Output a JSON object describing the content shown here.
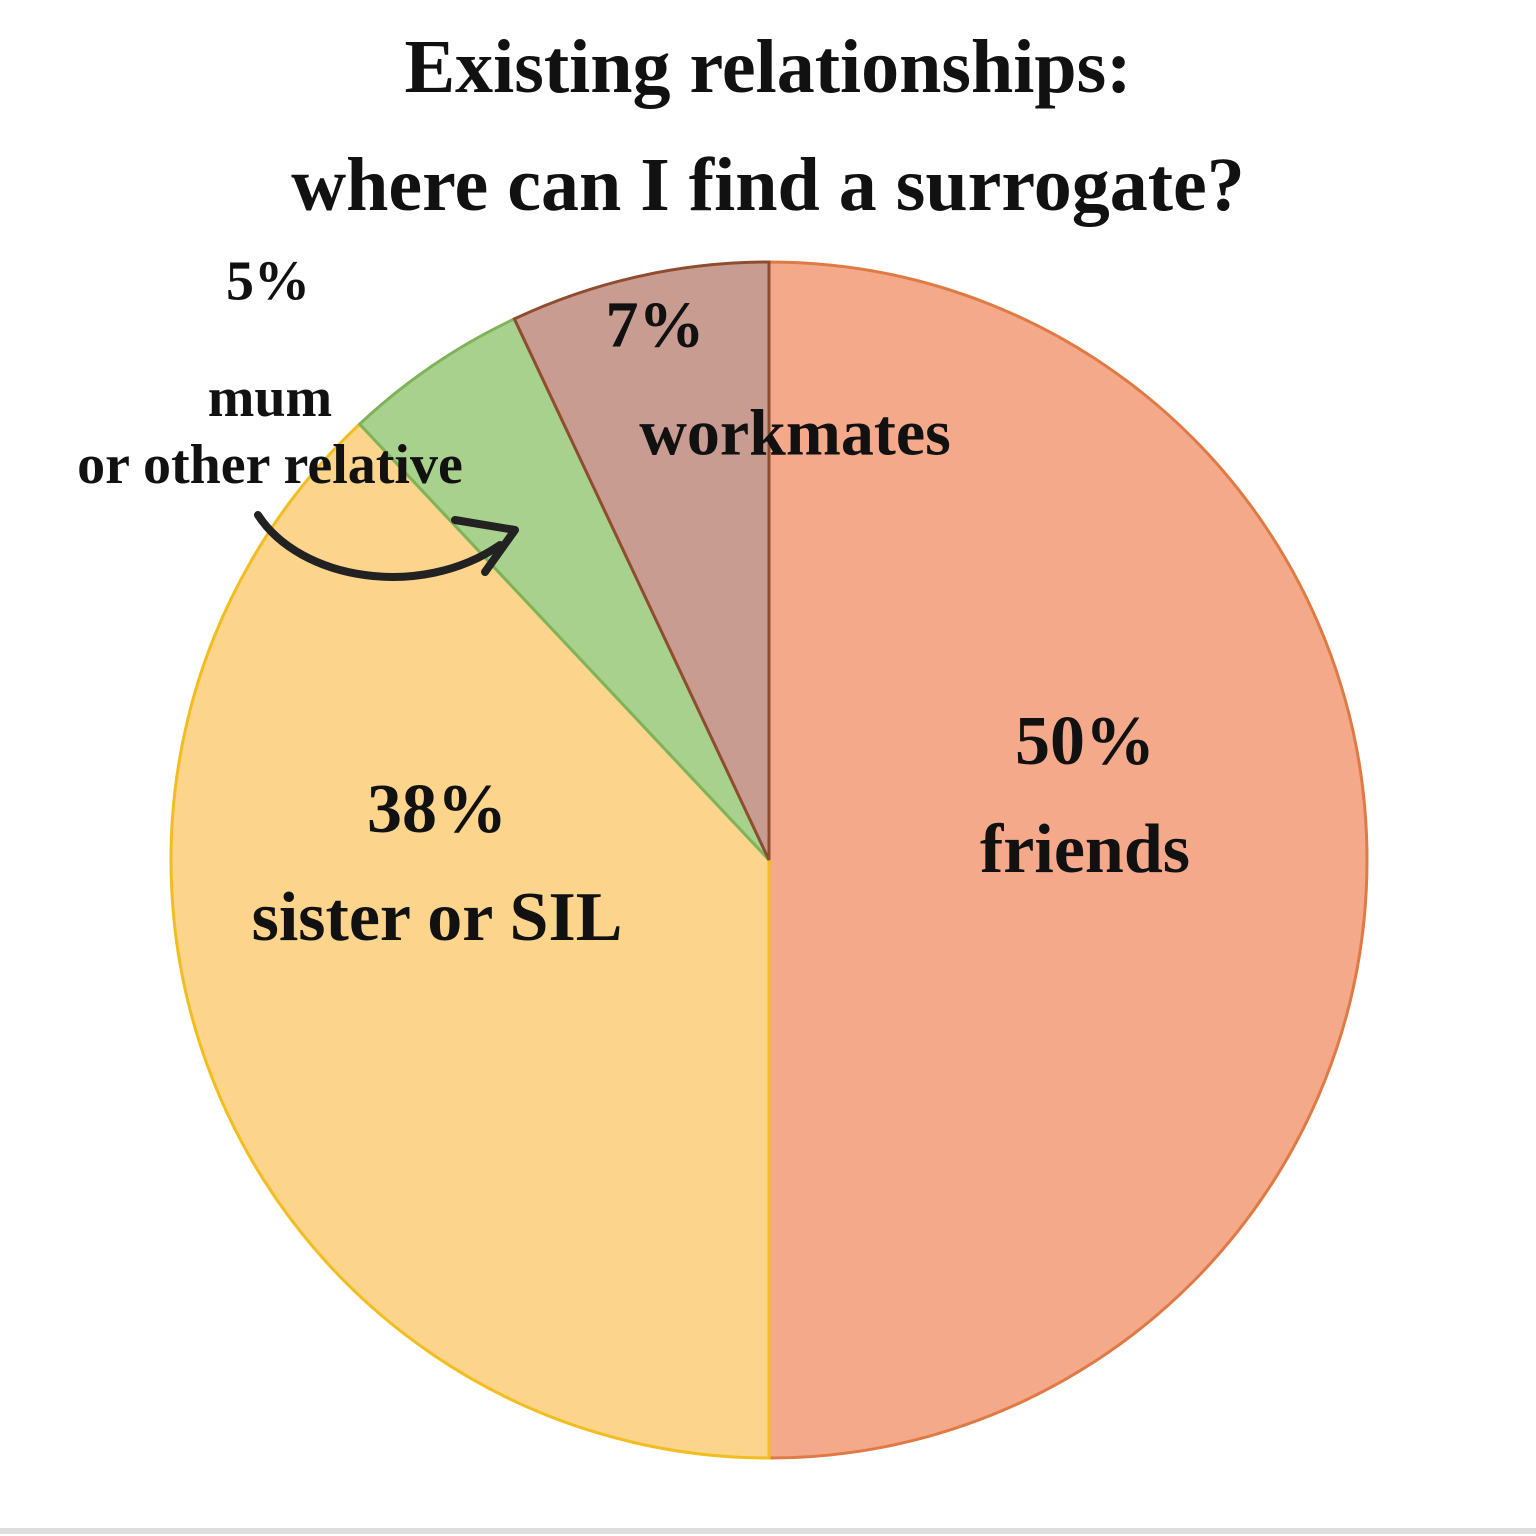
{
  "chart_data": {
    "type": "pie",
    "title": "Existing relationships:\nwhere can I find a surrogate?",
    "categories": [
      "friends",
      "sister or SIL",
      "mum\nor other relative",
      "workmates"
    ],
    "values": [
      50,
      38,
      5,
      7
    ],
    "value_labels": [
      "50%",
      "38%",
      "5%",
      "7%"
    ],
    "colors": [
      "#f4a98a",
      "#fcd48c",
      "#a9d18e",
      "#c99c91"
    ],
    "stroke_colors": [
      "#e07a45",
      "#f2bd1e",
      "#7fb35a",
      "#8f4d2f"
    ]
  }
}
